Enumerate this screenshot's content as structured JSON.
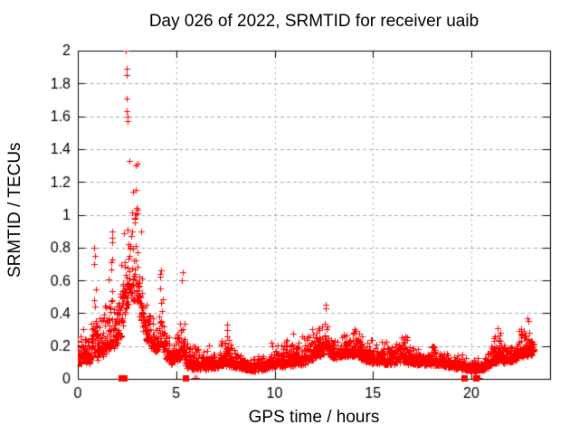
{
  "chart_data": {
    "type": "scatter",
    "title": "Day 026 of 2022, SRMTID for receiver uaib",
    "xlabel": "GPS time / hours",
    "ylabel": "SRMTID / TECUs",
    "xlim": [
      0,
      24
    ],
    "ylim": [
      0,
      2
    ],
    "xticks": [
      0,
      5,
      10,
      15,
      20
    ],
    "yticks": [
      0,
      0.2,
      0.4,
      0.6,
      0.8,
      1,
      1.2,
      1.4,
      1.6,
      1.8,
      2
    ],
    "grid": true,
    "legend_position": "none",
    "marker": "plus",
    "marker_color": "#ff0000",
    "axis_color": "#000000",
    "grid_color": "#a8a8a8",
    "background_color": "#ffffff",
    "series_name": "SRMTID",
    "data_x_end": 23.2,
    "envelope": {
      "x": [
        0.0,
        0.3,
        0.6,
        0.85,
        1.0,
        1.3,
        1.55,
        1.75,
        1.95,
        2.15,
        2.35,
        2.55,
        2.8,
        3.05,
        3.25,
        3.45,
        3.7,
        3.95,
        4.2,
        4.45,
        4.75,
        5.05,
        5.3,
        5.55,
        5.9,
        6.4,
        7.0,
        7.5,
        7.9,
        8.5,
        9.0,
        9.5,
        9.9,
        10.4,
        10.9,
        11.3,
        11.8,
        12.2,
        12.6,
        12.9,
        13.2,
        13.6,
        13.9,
        14.3,
        14.8,
        15.3,
        15.9,
        16.4,
        16.9,
        17.4,
        18.0,
        18.6,
        19.1,
        19.6,
        20.1,
        20.6,
        21.0,
        21.35,
        21.7,
        22.1,
        22.5,
        22.85,
        23.1,
        23.2
      ],
      "low": [
        0.08,
        0.09,
        0.08,
        0.12,
        0.1,
        0.12,
        0.15,
        0.18,
        0.15,
        0.2,
        0.3,
        0.4,
        0.45,
        0.4,
        0.3,
        0.22,
        0.18,
        0.15,
        0.18,
        0.12,
        0.08,
        0.1,
        0.12,
        0.06,
        0.05,
        0.05,
        0.06,
        0.07,
        0.06,
        0.05,
        0.04,
        0.05,
        0.06,
        0.06,
        0.07,
        0.07,
        0.09,
        0.12,
        0.15,
        0.12,
        0.11,
        0.13,
        0.13,
        0.11,
        0.09,
        0.08,
        0.08,
        0.09,
        0.08,
        0.08,
        0.08,
        0.07,
        0.06,
        0.05,
        0.04,
        0.05,
        0.07,
        0.09,
        0.09,
        0.1,
        0.12,
        0.13,
        0.14,
        0.15
      ],
      "high": [
        0.46,
        0.35,
        0.28,
        0.8,
        0.35,
        0.42,
        0.55,
        0.9,
        0.6,
        0.95,
        1.35,
        1.35,
        1.32,
        1.3,
        1.05,
        0.7,
        0.55,
        0.42,
        0.66,
        0.4,
        0.3,
        0.38,
        0.65,
        0.28,
        0.2,
        0.2,
        0.21,
        0.33,
        0.22,
        0.18,
        0.13,
        0.16,
        0.23,
        0.2,
        0.28,
        0.25,
        0.3,
        0.38,
        0.46,
        0.38,
        0.32,
        0.38,
        0.38,
        0.3,
        0.26,
        0.24,
        0.22,
        0.28,
        0.24,
        0.21,
        0.22,
        0.2,
        0.19,
        0.17,
        0.14,
        0.16,
        0.2,
        0.31,
        0.23,
        0.26,
        0.3,
        0.38,
        0.33,
        0.3
      ]
    },
    "outliers": [
      [
        2.44,
        2.0
      ],
      [
        2.46,
        1.89
      ],
      [
        2.46,
        1.85
      ],
      [
        2.49,
        1.71
      ],
      [
        2.5,
        1.63
      ],
      [
        2.51,
        1.6
      ],
      [
        2.52,
        1.57
      ],
      [
        2.62,
        1.33
      ],
      [
        2.95,
        1.3
      ],
      [
        3.05,
        1.31
      ],
      [
        0.84,
        0.7
      ],
      [
        0.85,
        0.8
      ],
      [
        0.86,
        0.75
      ],
      [
        1.74,
        0.86
      ],
      [
        1.75,
        0.9
      ],
      [
        1.77,
        0.83
      ],
      [
        4.2,
        0.62
      ],
      [
        4.22,
        0.66
      ],
      [
        5.3,
        0.6
      ],
      [
        5.32,
        0.65
      ],
      [
        7.57,
        0.3
      ],
      [
        7.58,
        0.33
      ],
      [
        12.6,
        0.43
      ],
      [
        12.62,
        0.45
      ],
      [
        21.32,
        0.31
      ],
      [
        22.85,
        0.37
      ],
      [
        22.9,
        0.35
      ]
    ],
    "zero_squares_x": [
      2.2,
      2.33,
      5.45,
      19.62,
      20.22
    ],
    "near_zero_x": [
      5.95,
      6.03,
      20.33,
      20.42
    ]
  }
}
